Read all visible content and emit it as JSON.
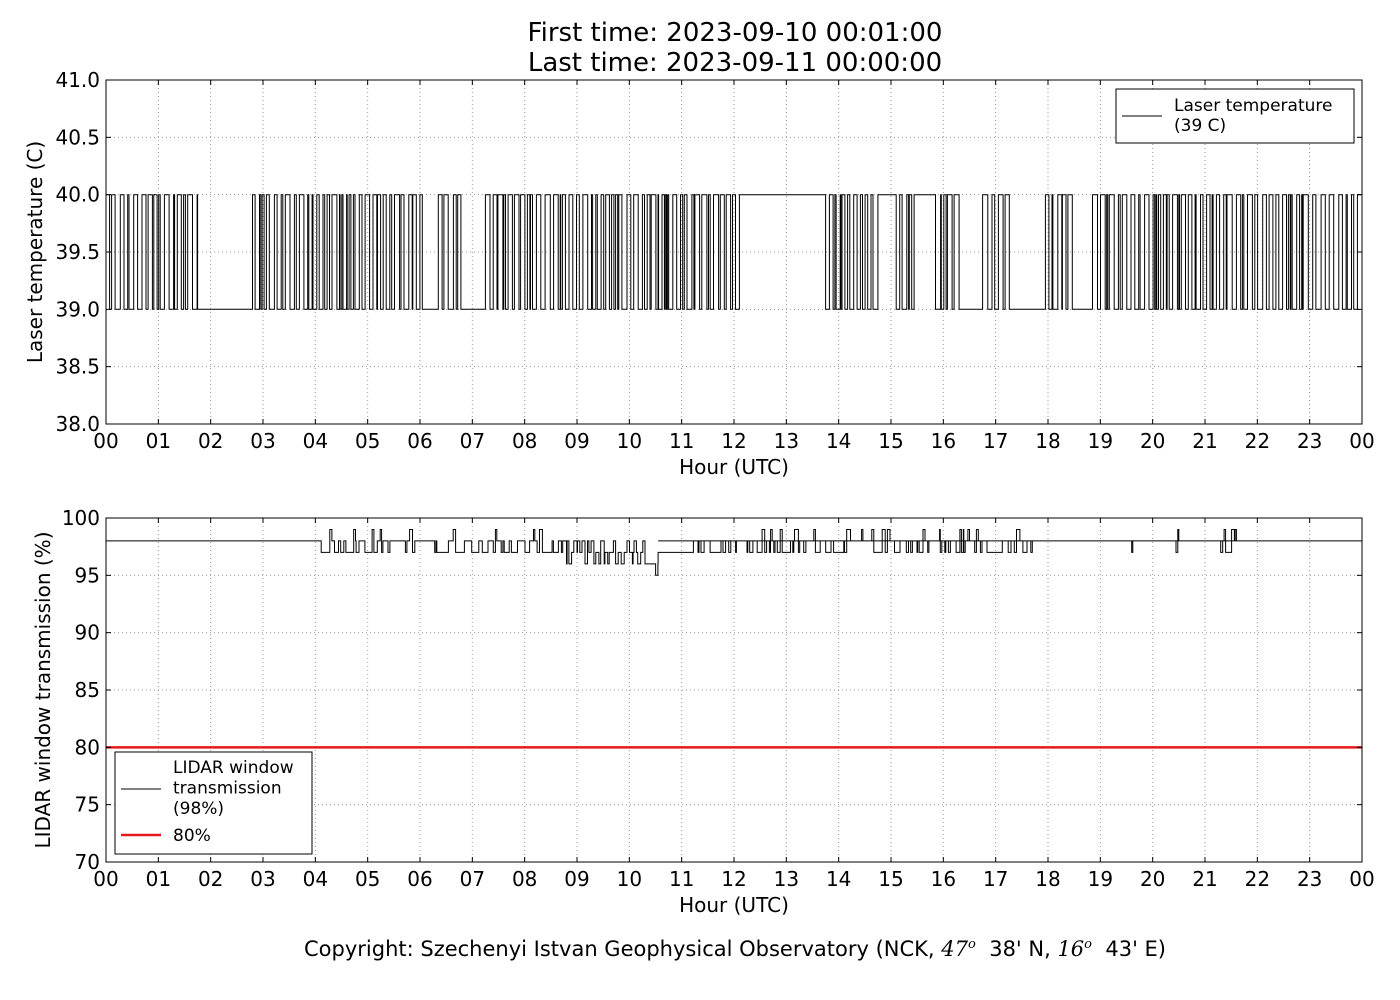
{
  "title_lines": [
    "First time: 2023-09-10 00:01:00",
    "Last time: 2023-09-11 00:00:00"
  ],
  "copyright": {
    "prefix": "Copyright: Szechenyi Istvan Geophysical Observatory (NCK, ",
    "lat_deg": "47",
    "lat_min": "38' N, ",
    "lon_deg": "16",
    "lon_min": "43' E)",
    "degree_symbol": "o"
  },
  "chart_data": [
    {
      "type": "line",
      "xlabel": "Hour (UTC)",
      "ylabel": "Laser temperature (C)",
      "xlim": [
        0,
        24
      ],
      "ylim": [
        38.0,
        41.0
      ],
      "x_tick_labels": [
        "00",
        "01",
        "02",
        "03",
        "04",
        "05",
        "06",
        "07",
        "08",
        "09",
        "10",
        "11",
        "12",
        "13",
        "14",
        "15",
        "16",
        "17",
        "18",
        "19",
        "20",
        "21",
        "22",
        "23",
        "00"
      ],
      "y_ticks": [
        "38.0",
        "38.5",
        "39.0",
        "39.5",
        "40.0",
        "40.5",
        "41.0"
      ],
      "grid": true,
      "legend_position": "top-right",
      "series": [
        {
          "name": "Laser temperature\n(39 C)",
          "color": "#000000",
          "description_values": [
            39.0,
            40.0
          ],
          "active_intervals": [
            [
              0.0,
              1.75
            ],
            [
              2.8,
              6.05
            ],
            [
              6.35,
              6.8
            ],
            [
              7.25,
              12.15
            ],
            [
              13.75,
              14.75
            ],
            [
              15.1,
              15.5
            ],
            [
              15.85,
              16.35
            ],
            [
              16.75,
              17.3
            ],
            [
              17.95,
              18.5
            ],
            [
              18.85,
              23.95
            ]
          ],
          "constant_segments": [
            {
              "x": [
                1.75,
                2.8
              ],
              "y": 39.0
            },
            {
              "x": [
                12.15,
                13.75
              ],
              "y": 40.0
            },
            {
              "x": [
                17.3,
                17.95
              ],
              "y": 39.0
            }
          ],
          "values": [
            39.0,
            40.0
          ]
        }
      ]
    },
    {
      "type": "line",
      "xlabel": "Hour (UTC)",
      "ylabel": "LIDAR window transmission (%)",
      "xlim": [
        0,
        24
      ],
      "ylim": [
        70,
        100
      ],
      "x_tick_labels": [
        "00",
        "01",
        "02",
        "03",
        "04",
        "05",
        "06",
        "07",
        "08",
        "09",
        "10",
        "11",
        "12",
        "13",
        "14",
        "15",
        "16",
        "17",
        "18",
        "19",
        "20",
        "21",
        "22",
        "23",
        "00"
      ],
      "y_ticks": [
        "70",
        "75",
        "80",
        "85",
        "90",
        "95",
        "100"
      ],
      "grid": true,
      "legend_position": "bottom-left",
      "series": [
        {
          "name": "LIDAR window\ntransmission\n(98%)",
          "color": "#000000",
          "baseline": 98,
          "dip_intervals": [
            [
              2.9,
              2.92
            ],
            [
              4.1,
              5.9
            ],
            [
              6.2,
              7.3
            ],
            [
              7.4,
              8.8
            ],
            [
              8.8,
              10.3
            ],
            [
              10.3,
              10.55
            ],
            [
              11.0,
              12.7
            ],
            [
              12.7,
              16.5
            ],
            [
              16.6,
              17.7
            ],
            [
              19.6,
              19.62
            ],
            [
              20.3,
              20.5
            ],
            [
              21.3,
              21.6
            ]
          ],
          "values": [
            98,
            97,
            96,
            95,
            99
          ]
        },
        {
          "name": "80%",
          "color": "#e41a1c",
          "values": [
            80,
            80
          ]
        }
      ]
    }
  ]
}
